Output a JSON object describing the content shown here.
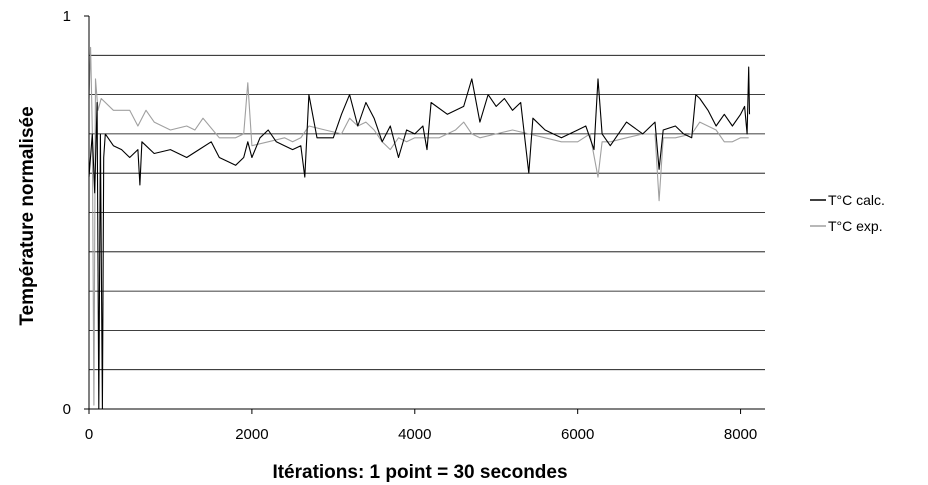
{
  "chart_data": {
    "type": "line",
    "xlabel": "Itérations: 1 point = 30 secondes",
    "ylabel": "Température normalisée",
    "xlim": [
      0,
      8300
    ],
    "ylim": [
      0,
      1
    ],
    "x_ticks": [
      0,
      2000,
      4000,
      6000,
      8000
    ],
    "x_tick_labels": [
      "0",
      "2000",
      "4000",
      "6000",
      "8000"
    ],
    "y_tick_labels": [
      {
        "value": 0,
        "label": "0"
      },
      {
        "value": 1,
        "label": "1"
      }
    ],
    "grid": "horizontal",
    "grid_step": 0.1,
    "legend_position": "right",
    "series": [
      {
        "name": "T°C calc.",
        "color": "#000000",
        "points": [
          [
            0,
            0.59
          ],
          [
            40,
            0.7
          ],
          [
            70,
            0.55
          ],
          [
            100,
            0.78
          ],
          [
            120,
            0.0
          ],
          [
            140,
            0.7
          ],
          [
            165,
            0.0
          ],
          [
            180,
            0.64
          ],
          [
            200,
            0.7
          ],
          [
            300,
            0.67
          ],
          [
            400,
            0.66
          ],
          [
            500,
            0.64
          ],
          [
            600,
            0.66
          ],
          [
            625,
            0.57
          ],
          [
            650,
            0.68
          ],
          [
            800,
            0.65
          ],
          [
            1000,
            0.66
          ],
          [
            1200,
            0.64
          ],
          [
            1350,
            0.66
          ],
          [
            1500,
            0.68
          ],
          [
            1600,
            0.64
          ],
          [
            1700,
            0.63
          ],
          [
            1800,
            0.62
          ],
          [
            1900,
            0.64
          ],
          [
            1950,
            0.68
          ],
          [
            2000,
            0.64
          ],
          [
            2100,
            0.69
          ],
          [
            2200,
            0.71
          ],
          [
            2300,
            0.68
          ],
          [
            2400,
            0.67
          ],
          [
            2500,
            0.66
          ],
          [
            2600,
            0.67
          ],
          [
            2650,
            0.59
          ],
          [
            2700,
            0.8
          ],
          [
            2800,
            0.69
          ],
          [
            3000,
            0.69
          ],
          [
            3100,
            0.75
          ],
          [
            3200,
            0.8
          ],
          [
            3300,
            0.72
          ],
          [
            3400,
            0.78
          ],
          [
            3500,
            0.74
          ],
          [
            3600,
            0.68
          ],
          [
            3700,
            0.72
          ],
          [
            3800,
            0.64
          ],
          [
            3900,
            0.71
          ],
          [
            4000,
            0.7
          ],
          [
            4100,
            0.72
          ],
          [
            4150,
            0.66
          ],
          [
            4200,
            0.78
          ],
          [
            4400,
            0.75
          ],
          [
            4600,
            0.77
          ],
          [
            4700,
            0.84
          ],
          [
            4800,
            0.73
          ],
          [
            4900,
            0.8
          ],
          [
            5000,
            0.77
          ],
          [
            5100,
            0.79
          ],
          [
            5200,
            0.76
          ],
          [
            5300,
            0.78
          ],
          [
            5400,
            0.6
          ],
          [
            5450,
            0.74
          ],
          [
            5600,
            0.71
          ],
          [
            5800,
            0.69
          ],
          [
            6000,
            0.71
          ],
          [
            6100,
            0.72
          ],
          [
            6200,
            0.66
          ],
          [
            6250,
            0.84
          ],
          [
            6300,
            0.7
          ],
          [
            6400,
            0.67
          ],
          [
            6600,
            0.73
          ],
          [
            6800,
            0.7
          ],
          [
            6950,
            0.73
          ],
          [
            7000,
            0.61
          ],
          [
            7050,
            0.71
          ],
          [
            7200,
            0.72
          ],
          [
            7300,
            0.7
          ],
          [
            7400,
            0.69
          ],
          [
            7450,
            0.8
          ],
          [
            7500,
            0.79
          ],
          [
            7600,
            0.76
          ],
          [
            7700,
            0.72
          ],
          [
            7800,
            0.75
          ],
          [
            7900,
            0.72
          ],
          [
            8000,
            0.75
          ],
          [
            8050,
            0.77
          ],
          [
            8080,
            0.7
          ],
          [
            8100,
            0.87
          ],
          [
            8110,
            0.75
          ]
        ]
      },
      {
        "name": "T°C exp.",
        "color": "#a0a0a0",
        "points": [
          [
            0,
            0.79
          ],
          [
            20,
            0.92
          ],
          [
            40,
            0.71
          ],
          [
            60,
            0.01
          ],
          [
            80,
            0.84
          ],
          [
            110,
            0.76
          ],
          [
            150,
            0.79
          ],
          [
            300,
            0.76
          ],
          [
            500,
            0.76
          ],
          [
            600,
            0.72
          ],
          [
            700,
            0.76
          ],
          [
            800,
            0.73
          ],
          [
            1000,
            0.71
          ],
          [
            1200,
            0.72
          ],
          [
            1300,
            0.71
          ],
          [
            1400,
            0.74
          ],
          [
            1600,
            0.69
          ],
          [
            1800,
            0.69
          ],
          [
            1900,
            0.7
          ],
          [
            1950,
            0.83
          ],
          [
            2000,
            0.67
          ],
          [
            2200,
            0.68
          ],
          [
            2400,
            0.69
          ],
          [
            2500,
            0.68
          ],
          [
            2600,
            0.69
          ],
          [
            2700,
            0.72
          ],
          [
            2900,
            0.71
          ],
          [
            3100,
            0.7
          ],
          [
            3200,
            0.74
          ],
          [
            3300,
            0.72
          ],
          [
            3400,
            0.73
          ],
          [
            3500,
            0.71
          ],
          [
            3600,
            0.68
          ],
          [
            3700,
            0.66
          ],
          [
            3800,
            0.69
          ],
          [
            3900,
            0.68
          ],
          [
            4000,
            0.69
          ],
          [
            4200,
            0.69
          ],
          [
            4300,
            0.69
          ],
          [
            4500,
            0.71
          ],
          [
            4600,
            0.73
          ],
          [
            4700,
            0.7
          ],
          [
            4800,
            0.69
          ],
          [
            5000,
            0.7
          ],
          [
            5200,
            0.71
          ],
          [
            5400,
            0.7
          ],
          [
            5600,
            0.69
          ],
          [
            5800,
            0.68
          ],
          [
            6000,
            0.68
          ],
          [
            6150,
            0.7
          ],
          [
            6250,
            0.59
          ],
          [
            6300,
            0.68
          ],
          [
            6400,
            0.68
          ],
          [
            6600,
            0.69
          ],
          [
            6800,
            0.7
          ],
          [
            6950,
            0.7
          ],
          [
            7000,
            0.53
          ],
          [
            7050,
            0.69
          ],
          [
            7200,
            0.69
          ],
          [
            7400,
            0.7
          ],
          [
            7500,
            0.73
          ],
          [
            7700,
            0.71
          ],
          [
            7800,
            0.68
          ],
          [
            7900,
            0.68
          ],
          [
            8000,
            0.69
          ],
          [
            8100,
            0.69
          ]
        ]
      }
    ]
  }
}
